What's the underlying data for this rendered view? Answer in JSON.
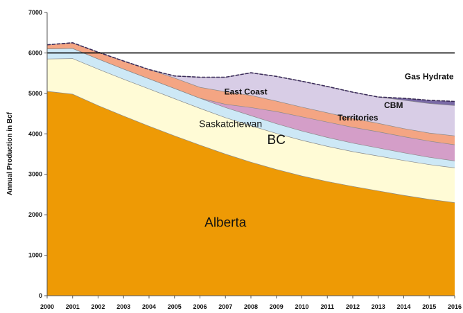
{
  "chart_data": {
    "type": "area",
    "stacked": true,
    "ylabel": "Annual Production in Bcf",
    "xlabel": "",
    "ylim": [
      0,
      7000
    ],
    "yticks": [
      0,
      1000,
      2000,
      3000,
      4000,
      5000,
      6000,
      7000
    ],
    "x": [
      "2000",
      "2001",
      "2002",
      "2003",
      "2004",
      "2005",
      "2006",
      "2007",
      "2008",
      "2009",
      "2010",
      "2011",
      "2012",
      "2013",
      "2014",
      "2015",
      "2016"
    ],
    "series": [
      {
        "name": "Alberta",
        "color": "#ee9a05",
        "values": [
          5050,
          4980,
          4700,
          4440,
          4190,
          3950,
          3720,
          3500,
          3300,
          3120,
          2960,
          2820,
          2700,
          2590,
          2480,
          2380,
          2300
        ]
      },
      {
        "name": "BC",
        "color": "#fffbd6",
        "values": [
          800,
          880,
          900,
          910,
          920,
          920,
          910,
          900,
          900,
          890,
          880,
          870,
          860,
          860,
          860,
          860,
          860
        ]
      },
      {
        "name": "Saskatchewan",
        "color": "#cde8f6",
        "values": [
          250,
          250,
          250,
          250,
          250,
          250,
          250,
          250,
          250,
          240,
          230,
          220,
          210,
          200,
          190,
          180,
          170
        ]
      },
      {
        "name": "Territories",
        "color": "#d49ec8",
        "values": [
          0,
          0,
          0,
          0,
          0,
          0,
          0,
          80,
          200,
          300,
          350,
          380,
          390,
          400,
          400,
          400,
          400
        ]
      },
      {
        "name": "East Coast",
        "color": "#f4a583",
        "values": [
          100,
          140,
          170,
          200,
          230,
          260,
          270,
          310,
          300,
          260,
          240,
          230,
          220,
          210,
          200,
          200,
          220
        ]
      },
      {
        "name": "CBM",
        "color": "#d8cde6",
        "values": [
          0,
          0,
          0,
          0,
          0,
          50,
          250,
          360,
          560,
          610,
          640,
          650,
          650,
          650,
          700,
          730,
          750
        ]
      },
      {
        "name": "Gas Hydrate",
        "color": "#7a6aa6",
        "values": [
          0,
          0,
          0,
          0,
          0,
          0,
          0,
          0,
          0,
          0,
          0,
          0,
          0,
          0,
          50,
          80,
          100
        ]
      }
    ],
    "reference_line": {
      "y": 6000,
      "color": "#000000"
    },
    "grid": false,
    "legend": "inline",
    "colors": {
      "pink_band_top": "#f2a8b4",
      "outline": "#3a2a5a"
    }
  }
}
